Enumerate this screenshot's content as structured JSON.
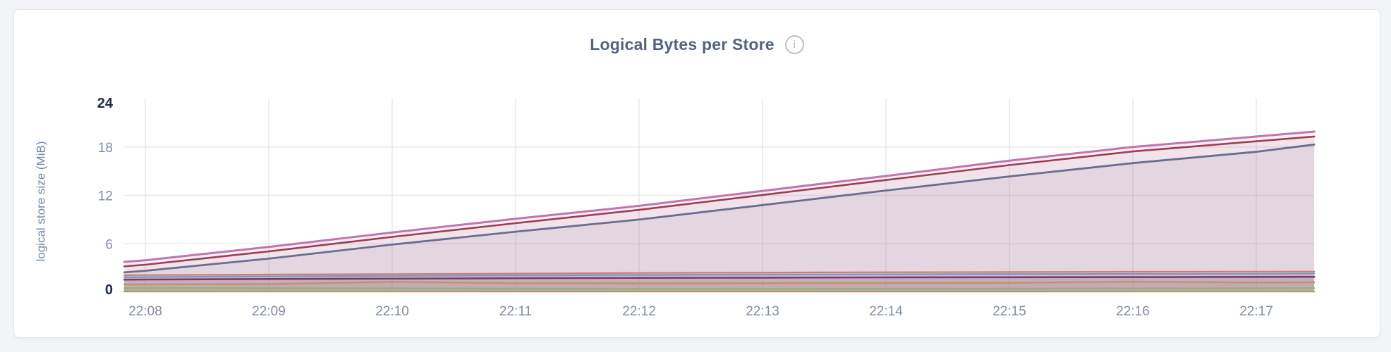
{
  "header": {
    "title": "Logical Bytes per Store"
  },
  "colors": {
    "page_bg": "#f3f4f8",
    "card_bg": "#ffffff",
    "card_border": "#e4e5e9",
    "title_text": "#546381",
    "axis_text": "#7f8ea6",
    "axis_text_strong": "#1c2a4e",
    "axis_title_text": "#6f87a7",
    "gridline": "#e9e9ec",
    "info_icon_ring": "#bcc0c8"
  },
  "info_icon": {
    "glyph": "i"
  },
  "chart_data": {
    "type": "area",
    "title": "Logical Bytes per Store",
    "xlabel": "",
    "ylabel": "logical store size (MiB)",
    "ylim": [
      0,
      24
    ],
    "yticks": [
      0,
      6,
      12,
      18,
      24
    ],
    "ytick_strong": [
      0,
      24
    ],
    "grid": true,
    "legend_position": "none",
    "xtick_labels": [
      "22:08",
      "22:09",
      "22:10",
      "22:11",
      "22:12",
      "22:13",
      "22:14",
      "22:15",
      "22:16",
      "22:17"
    ],
    "x_minutes": [
      7.83,
      8,
      9,
      10,
      11,
      12,
      13,
      14,
      15,
      16,
      17,
      17.47
    ],
    "x_range_note": "window spans ~22:07:50 to ~22:17:28",
    "series": [
      {
        "id": "store-rising-1",
        "color": "#c373ae",
        "line_width": 3,
        "fill_opacity": 0.1,
        "values": [
          3.75,
          3.95,
          5.6,
          7.4,
          9.1,
          10.7,
          12.55,
          14.4,
          16.3,
          18.0,
          19.3,
          19.9
        ]
      },
      {
        "id": "store-rising-2",
        "color": "#9d3e53",
        "line_width": 2.6,
        "fill_opacity": 0.08,
        "values": [
          3.2,
          3.4,
          5.05,
          6.85,
          8.55,
          10.2,
          12.05,
          13.9,
          15.75,
          17.45,
          18.7,
          19.3
        ]
      },
      {
        "id": "store-rising-3",
        "color": "#6b6d90",
        "line_width": 2.8,
        "fill_opacity": 0.1,
        "values": [
          2.45,
          2.65,
          4.15,
          5.9,
          7.5,
          9.0,
          10.8,
          12.6,
          14.35,
          16.0,
          17.4,
          18.3
        ]
      },
      {
        "id": "store-flat-1",
        "color": "#d07c72",
        "line_width": 2.2,
        "fill_opacity": 0.14,
        "values": [
          2.1,
          2.12,
          2.18,
          2.24,
          2.3,
          2.38,
          2.43,
          2.47,
          2.5,
          2.53,
          2.55,
          2.56
        ]
      },
      {
        "id": "store-flat-2",
        "color": "#7e98c3",
        "line_width": 2.4,
        "fill_opacity": 0.14,
        "values": [
          1.85,
          1.87,
          1.95,
          2.02,
          2.08,
          2.14,
          2.18,
          2.21,
          2.24,
          2.26,
          2.28,
          2.3
        ]
      },
      {
        "id": "store-flat-3",
        "color": "#7d3a6d",
        "line_width": 2.6,
        "fill_opacity": 0.14,
        "values": [
          1.55,
          1.57,
          1.63,
          1.68,
          1.73,
          1.77,
          1.8,
          1.83,
          1.85,
          1.87,
          1.89,
          1.9
        ]
      },
      {
        "id": "store-flat-4",
        "color": "#bd9861",
        "line_width": 2.4,
        "fill_opacity": 0.14,
        "values": [
          0.95,
          0.97,
          1.0,
          1.28,
          1.12,
          1.1,
          1.12,
          1.14,
          1.16,
          1.3,
          1.2,
          1.22
        ]
      },
      {
        "id": "store-flat-5",
        "color": "#8cb488",
        "line_width": 2.4,
        "fill_opacity": 0.14,
        "values": [
          0.5,
          0.5,
          0.48,
          0.46,
          0.44,
          0.42,
          0.42,
          0.43,
          0.44,
          0.46,
          0.48,
          0.5
        ]
      },
      {
        "id": "store-flat-6",
        "color": "#bd9861",
        "line_width": 2.4,
        "fill_opacity": 0.14,
        "values": [
          0.08,
          0.08,
          0.08,
          0.08,
          0.08,
          0.08,
          0.08,
          0.08,
          0.08,
          0.08,
          0.08,
          0.08
        ]
      }
    ]
  }
}
